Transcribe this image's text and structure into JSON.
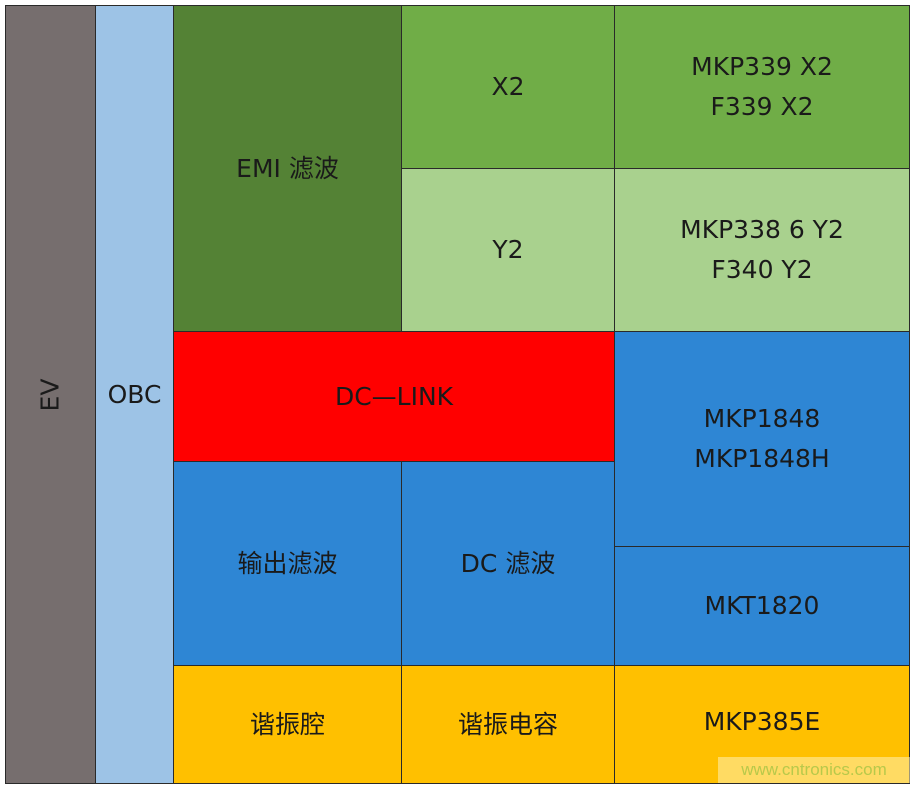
{
  "colors": {
    "ev": "#766e6e",
    "obc": "#9dc3e6",
    "emi": "#548235",
    "x2": "#70ad47",
    "y2": "#a9d18e",
    "dclink": "#ff0000",
    "blue": "#2e86d4",
    "yellow": "#ffc000"
  },
  "ev": "EV",
  "obc": "OBC",
  "emi_filter": "EMI  滤波",
  "x2": {
    "label": "X2",
    "parts": "MKP339  X2\nF339  X2"
  },
  "y2": {
    "label": "Y2",
    "parts": "MKP338  6  Y2\nF340  Y2"
  },
  "dc_link": {
    "label": "DC—LINK",
    "parts": "MKP1848\nMKP1848H"
  },
  "output_filter": "输出滤波",
  "dc_filter": {
    "label": "DC  滤波",
    "parts": "MKT1820"
  },
  "resonant_cavity": "谐振腔",
  "resonant_capacitor": {
    "label": "谐振电容",
    "parts": "MKP385E"
  },
  "watermark": "www.cntronics.com"
}
